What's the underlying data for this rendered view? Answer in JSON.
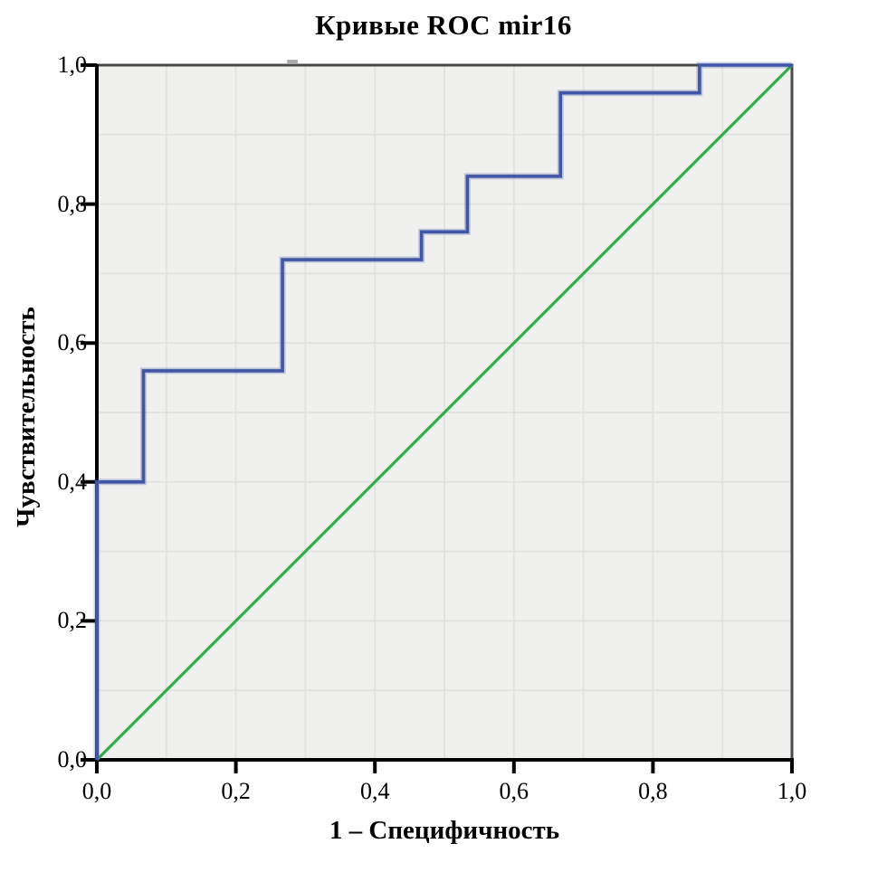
{
  "chart_data": {
    "type": "line",
    "subtype": "roc-step-curve",
    "title": "Кривые ROC mir16",
    "xlabel": "1 – Специфичность",
    "ylabel": "Чувствительность",
    "xlim": [
      0,
      1
    ],
    "ylim": [
      0,
      1
    ],
    "grid": "on",
    "grid_step": 0.1,
    "legend": "none",
    "tick_values": [
      0,
      0.2,
      0.4,
      0.6,
      0.8,
      1
    ],
    "x_tick_labels": [
      "0,0",
      "0,2",
      "0,4",
      "0,6",
      "0,8",
      "1,0"
    ],
    "y_tick_labels": [
      "0,0",
      "0,2",
      "0,4",
      "0,6",
      "0,8",
      "1,0"
    ],
    "series": [
      {
        "name": "roc-curve-mir16",
        "style": "step",
        "color": "#4156a6",
        "points": [
          [
            0,
            0
          ],
          [
            0,
            0.4
          ],
          [
            0.067,
            0.4
          ],
          [
            0.067,
            0.56
          ],
          [
            0.267,
            0.56
          ],
          [
            0.267,
            0.72
          ],
          [
            0.467,
            0.72
          ],
          [
            0.467,
            0.76
          ],
          [
            0.533,
            0.76
          ],
          [
            0.533,
            0.84
          ],
          [
            0.667,
            0.84
          ],
          [
            0.667,
            0.96
          ],
          [
            0.867,
            0.96
          ],
          [
            0.867,
            1
          ],
          [
            1,
            1
          ]
        ],
        "sensitivity_levels": [
          0.4,
          0.56,
          0.72,
          0.76,
          0.84,
          0.96,
          1.0
        ],
        "one_minus_specificity_steps": [
          0.067,
          0.267,
          0.467,
          0.533,
          0.667,
          0.867
        ]
      },
      {
        "name": "reference-diagonal",
        "style": "straight",
        "color": "#2fae47",
        "points": [
          [
            0,
            0
          ],
          [
            1,
            1
          ]
        ]
      }
    ]
  },
  "colors": {
    "plot_background": "#f0f0ee",
    "gridline": "#e3e3e1",
    "plot_border": "#4a4a4a",
    "axis": "#000000",
    "roc_curve": "#4156a6",
    "reference_line": "#2fae47",
    "text": "#000000"
  }
}
